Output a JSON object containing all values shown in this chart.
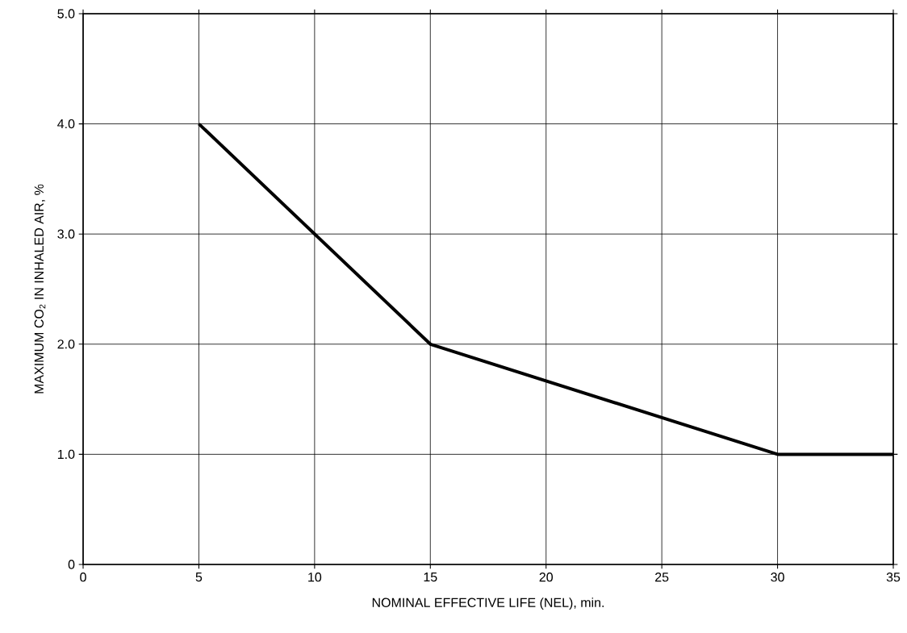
{
  "chart_data": {
    "type": "line",
    "xlabel": "NOMINAL EFFECTIVE LIFE (NEL), min.",
    "ylabel": "MAXIMUM CO$_{2}$ IN INHALED AIR, %",
    "x": [
      5,
      10,
      15,
      30,
      35
    ],
    "series": [
      {
        "color": "#000000",
        "values": [
          4.0,
          3.0,
          2.0,
          1.0,
          1.0
        ]
      }
    ],
    "xlim": [
      0,
      35
    ],
    "xticks": [
      0,
      5,
      10,
      15,
      20,
      25,
      30,
      35
    ],
    "ylim": [
      0,
      5
    ],
    "yticks": [
      0,
      {
        "value": 1,
        "label": "1.0"
      },
      {
        "value": 2,
        "label": "2.0"
      },
      {
        "value": 3,
        "label": "3.0"
      },
      {
        "value": 4,
        "label": "4.0"
      },
      {
        "value": 5,
        "label": "5.0"
      }
    ],
    "grid": true,
    "marker": "none",
    "line_style": "solid"
  }
}
